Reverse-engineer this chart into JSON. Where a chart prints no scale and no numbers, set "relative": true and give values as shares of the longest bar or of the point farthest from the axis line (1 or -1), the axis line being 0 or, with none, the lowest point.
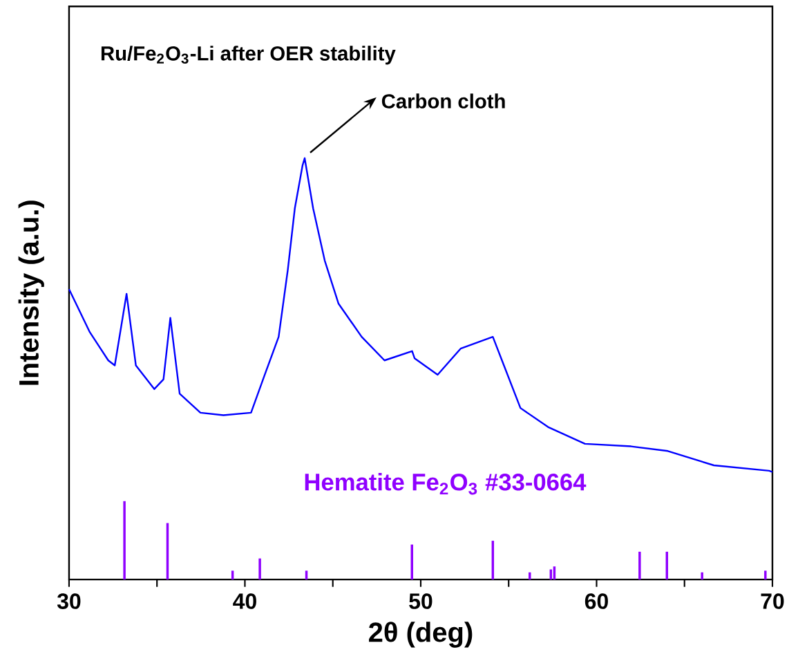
{
  "chart_data": {
    "type": "line",
    "relative": true,
    "title": "Ru/Fe$_{2}$O$_{3}$-Li after OER stability",
    "xlabel": "2θ (deg)",
    "ylabel": "Intensity (a.u.)",
    "xlim": [
      30,
      70
    ],
    "xticks": [
      30,
      {
        "value": 35,
        "label": null
      },
      40,
      {
        "value": 45,
        "label": null
      },
      50,
      {
        "value": 55,
        "label": null
      },
      60,
      {
        "value": 65,
        "label": null
      },
      70
    ],
    "annotations": [
      {
        "text": "Carbon cloth",
        "x": 43.4,
        "y": 1.0
      }
    ],
    "series": [
      {
        "color": "#0000ff",
        "x": [
          30.0,
          31.18,
          32.23,
          32.6,
          33.27,
          33.8,
          34.85,
          35.37,
          35.76,
          36.29,
          37.47,
          38.78,
          40.35,
          41.13,
          41.92,
          42.44,
          42.84,
          43.28,
          43.4,
          43.88,
          44.54,
          45.32,
          46.64,
          47.94,
          49.51,
          49.65,
          50.96,
          52.27,
          54.1,
          54.62,
          55.67,
          57.24,
          59.34,
          61.96,
          64.05,
          66.67,
          69.82,
          70.0
        ],
        "values": [
          0.689,
          0.587,
          0.52,
          0.508,
          0.678,
          0.508,
          0.452,
          0.475,
          0.621,
          0.441,
          0.396,
          0.39,
          0.396,
          0.486,
          0.576,
          0.735,
          0.881,
          0.983,
          1.0,
          0.881,
          0.757,
          0.655,
          0.576,
          0.52,
          0.542,
          0.525,
          0.486,
          0.548,
          0.576,
          0.52,
          0.407,
          0.362,
          0.322,
          0.316,
          0.305,
          0.271,
          0.258,
          0.255
        ]
      },
      {
        "type": "bar",
        "name": "Hematite Fe$_{2}$O$_{3}$ #33-0664",
        "color": "#8f00ff",
        "x": [
          33.15,
          35.6,
          39.3,
          40.85,
          43.5,
          49.5,
          54.1,
          56.2,
          57.4,
          57.6,
          62.45,
          64.0,
          66.0,
          69.6
        ],
        "values": [
          0.186,
          0.134,
          0.021,
          0.05,
          0.021,
          0.083,
          0.092,
          0.017,
          0.024,
          0.031,
          0.066,
          0.066,
          0.017,
          0.021
        ]
      }
    ]
  }
}
